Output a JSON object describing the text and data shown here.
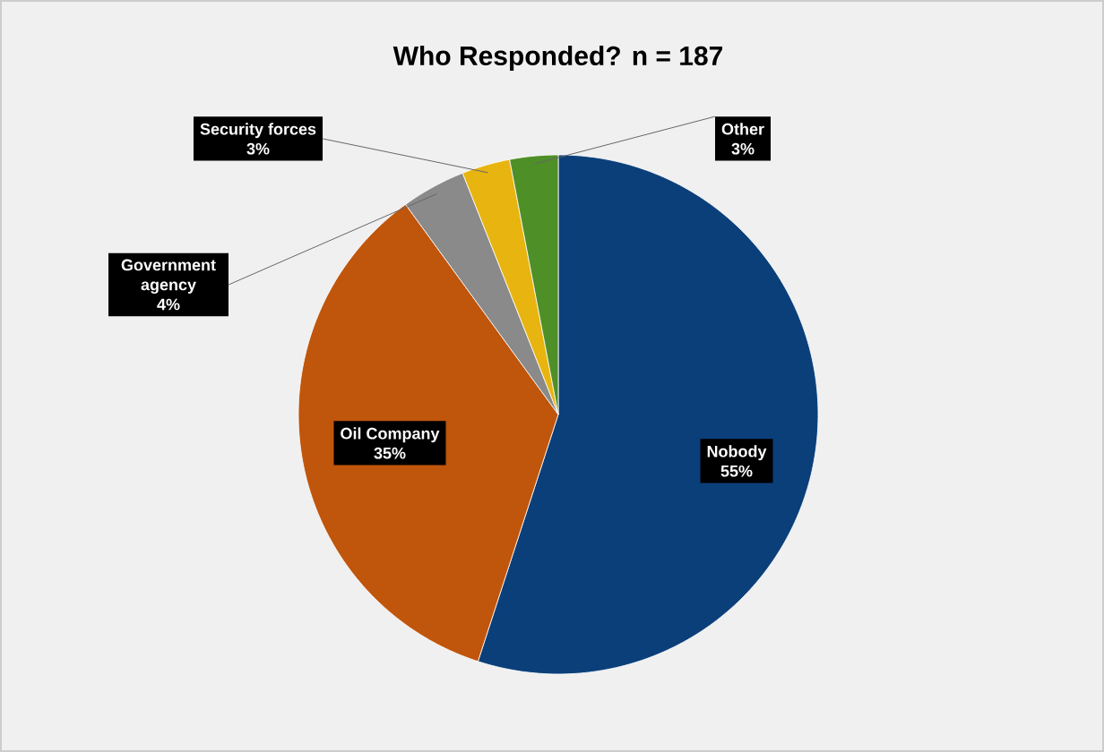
{
  "chart_data": {
    "type": "pie",
    "title": "Who Responded? n = 187",
    "categories": [
      "Nobody",
      "Oil Company",
      "Government agency",
      "Security forces",
      "Other"
    ],
    "values": [
      55,
      35,
      4,
      3,
      3
    ],
    "value_labels": [
      "55%",
      "35%",
      "4%",
      "3%",
      "3%"
    ],
    "colors": [
      "#0b3f7a",
      "#c0550c",
      "#8a8a8a",
      "#e8b410",
      "#4f8f27"
    ]
  }
}
